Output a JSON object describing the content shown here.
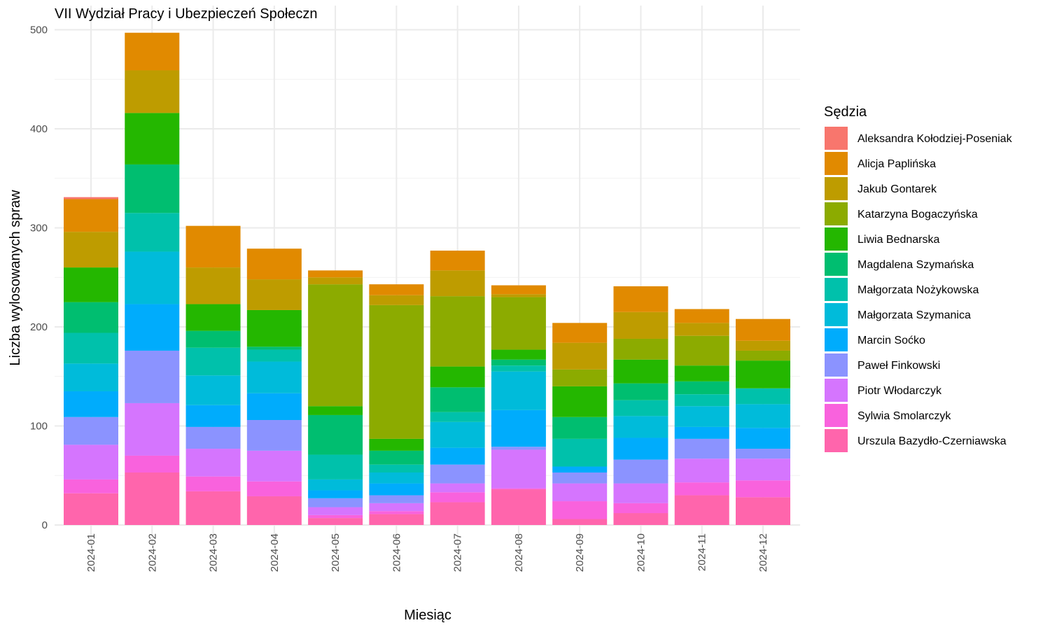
{
  "chart_data": {
    "type": "bar",
    "stacked": true,
    "title": "VII Wydział Pracy i Ubezpieczeń Społeczn",
    "xlabel": "Miesiąc",
    "ylabel": "Liczba wylosowanych spraw",
    "ylim": [
      0,
      510
    ],
    "yticks": [
      0,
      100,
      200,
      300,
      400,
      500
    ],
    "grid": true,
    "legend_title": "Sędzia",
    "legend_position": "right",
    "categories": [
      "2024-01",
      "2024-02",
      "2024-03",
      "2024-04",
      "2024-05",
      "2024-06",
      "2024-07",
      "2024-08",
      "2024-09",
      "2024-10",
      "2024-11",
      "2024-12"
    ],
    "series": [
      {
        "name": "Aleksandra Kołodziej-Poseniak",
        "color": "#F8766D",
        "values": [
          2,
          0,
          0,
          0,
          0,
          0,
          0,
          0,
          0,
          0,
          0,
          0
        ]
      },
      {
        "name": "Alicja Paplińska",
        "color": "#E18A00",
        "values": [
          33,
          38,
          42,
          31,
          7,
          11,
          20,
          9,
          20,
          26,
          14,
          22
        ]
      },
      {
        "name": "Jakub Gontarek",
        "color": "#BE9C00",
        "values": [
          36,
          43,
          37,
          31,
          7,
          10,
          26,
          3,
          27,
          27,
          13,
          10
        ]
      },
      {
        "name": "Katarzyna Bogaczyńska",
        "color": "#8CAB00",
        "values": [
          0,
          0,
          0,
          0,
          123,
          135,
          71,
          53,
          17,
          21,
          30,
          10
        ]
      },
      {
        "name": "Liwia Bednarska",
        "color": "#24B700",
        "values": [
          35,
          52,
          27,
          37,
          9,
          12,
          21,
          10,
          31,
          24,
          16,
          28
        ]
      },
      {
        "name": "Magdalena Szymańska",
        "color": "#00BE70",
        "values": [
          31,
          49,
          17,
          3,
          40,
          14,
          25,
          6,
          22,
          17,
          13,
          0
        ]
      },
      {
        "name": "Małgorzata Nożykowska",
        "color": "#00C1AB",
        "values": [
          31,
          39,
          28,
          12,
          25,
          8,
          10,
          6,
          28,
          16,
          12,
          16
        ]
      },
      {
        "name": "Małgorzata Szymanica",
        "color": "#00BBDA",
        "values": [
          28,
          53,
          30,
          32,
          11,
          11,
          26,
          39,
          0,
          22,
          21,
          24
        ]
      },
      {
        "name": "Marcin Soćko",
        "color": "#00ACFC",
        "values": [
          26,
          47,
          22,
          27,
          8,
          12,
          17,
          37,
          6,
          22,
          12,
          21
        ]
      },
      {
        "name": "Paweł Finkowski",
        "color": "#8B93FF",
        "values": [
          28,
          53,
          22,
          31,
          9,
          8,
          19,
          3,
          11,
          24,
          20,
          10
        ]
      },
      {
        "name": "Piotr Włodarczyk",
        "color": "#D575FE",
        "values": [
          35,
          53,
          28,
          31,
          8,
          8,
          9,
          39,
          18,
          20,
          24,
          22
        ]
      },
      {
        "name": "Sylwia Smolarczyk",
        "color": "#F962DD",
        "values": [
          14,
          17,
          15,
          15,
          3,
          3,
          10,
          1,
          18,
          10,
          13,
          17
        ]
      },
      {
        "name": "Urszula Bazydło-Czerniawska",
        "color": "#FF65AC",
        "values": [
          32,
          53,
          34,
          29,
          7,
          11,
          23,
          36,
          6,
          12,
          30,
          28
        ]
      }
    ]
  }
}
